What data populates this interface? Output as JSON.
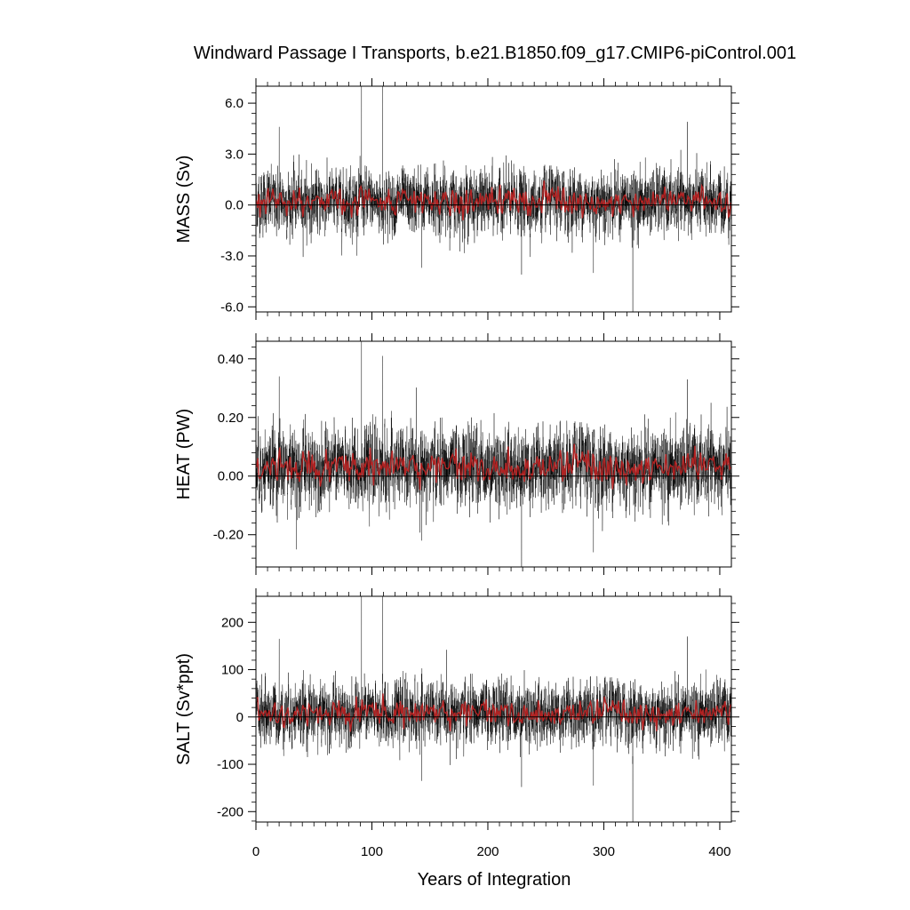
{
  "chart_data": {
    "type": "line",
    "title": "Windward Passage I Transports, b.e21.B1850.f09_g17.CMIP6-piControl.001",
    "xlabel": "Years of Integration",
    "xlim": [
      0,
      410
    ],
    "xticks": [
      0,
      100,
      200,
      300,
      400
    ],
    "xtick_labels": [
      "0",
      "100",
      "200",
      "300",
      "400"
    ],
    "grid": false,
    "line_colors": {
      "monthly": "#000000",
      "annual": "#b22222",
      "zero_line": "#000000"
    },
    "panels": [
      {
        "ylabel": "MASS (Sv)",
        "ylim": [
          -6.3,
          7.0
        ],
        "yticks": [
          -6.0,
          -3.0,
          0.0,
          3.0,
          6.0
        ],
        "ytick_labels": [
          "-6.0",
          "-3.0",
          "0.0",
          "3.0",
          "6.0"
        ],
        "mean": 0.2,
        "noise_sd": 0.9,
        "spikes": [
          {
            "x": 91,
            "y": 7.0
          },
          {
            "x": 109,
            "y": 7.0
          },
          {
            "x": 325,
            "y": -6.3
          },
          {
            "x": 20,
            "y": 4.6
          },
          {
            "x": 372,
            "y": 4.9
          },
          {
            "x": 143,
            "y": -3.7
          },
          {
            "x": 229,
            "y": -4.1
          },
          {
            "x": 291,
            "y": -4.0
          }
        ]
      },
      {
        "ylabel": "HEAT (PW)",
        "ylim": [
          -0.31,
          0.46
        ],
        "yticks": [
          -0.2,
          0.0,
          0.2,
          0.4
        ],
        "ytick_labels": [
          "-0.20",
          "0.00",
          "0.20",
          "0.40"
        ],
        "mean": 0.03,
        "noise_sd": 0.065,
        "spikes": [
          {
            "x": 91,
            "y": 0.46
          },
          {
            "x": 109,
            "y": 0.41
          },
          {
            "x": 229,
            "y": -0.31
          },
          {
            "x": 20,
            "y": 0.34
          },
          {
            "x": 372,
            "y": 0.33
          },
          {
            "x": 143,
            "y": -0.22
          },
          {
            "x": 291,
            "y": -0.26
          },
          {
            "x": 35,
            "y": -0.25
          }
        ]
      },
      {
        "ylabel": "SALT (Sv*ppt)",
        "ylim": [
          -222,
          255
        ],
        "yticks": [
          -200,
          -100,
          0,
          100,
          200
        ],
        "ytick_labels": [
          "-200",
          "-100",
          "0",
          "100",
          "200"
        ],
        "mean": 8,
        "noise_sd": 32,
        "spikes": [
          {
            "x": 91,
            "y": 255
          },
          {
            "x": 109,
            "y": 255
          },
          {
            "x": 325,
            "y": -222
          },
          {
            "x": 20,
            "y": 165
          },
          {
            "x": 372,
            "y": 170
          },
          {
            "x": 143,
            "y": -135
          },
          {
            "x": 229,
            "y": -148
          },
          {
            "x": 291,
            "y": -145
          }
        ]
      }
    ]
  }
}
